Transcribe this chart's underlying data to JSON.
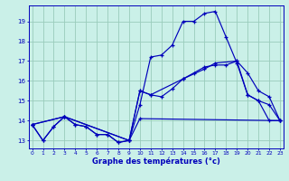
{
  "xlabel": "Graphe des températures (°c)",
  "bg_color": "#caf0e8",
  "line_color": "#0000bb",
  "grid_color": "#99ccbb",
  "xlim": [
    -0.3,
    23.3
  ],
  "ylim": [
    12.6,
    19.8
  ],
  "yticks": [
    13,
    14,
    15,
    16,
    17,
    18,
    19
  ],
  "xticks": [
    0,
    1,
    2,
    3,
    4,
    5,
    6,
    7,
    8,
    9,
    10,
    11,
    12,
    13,
    14,
    15,
    16,
    17,
    18,
    19,
    20,
    21,
    22,
    23
  ],
  "series": [
    {
      "x": [
        0,
        1,
        2,
        3,
        4,
        5,
        6,
        7,
        8,
        9,
        10,
        11,
        12,
        13,
        14,
        15,
        16,
        17,
        18,
        19,
        20,
        21,
        22,
        23
      ],
      "y": [
        13.8,
        13.0,
        13.7,
        14.2,
        13.8,
        13.7,
        13.3,
        13.3,
        12.9,
        13.0,
        14.8,
        17.2,
        17.3,
        17.8,
        19.0,
        19.0,
        19.4,
        19.5,
        18.2,
        16.9,
        15.3,
        15.0,
        14.0,
        14.0
      ]
    },
    {
      "x": [
        0,
        1,
        2,
        3,
        4,
        5,
        6,
        7,
        8,
        9,
        10,
        11,
        12,
        13,
        14,
        15,
        16,
        17,
        18,
        19,
        20,
        21,
        22,
        23
      ],
      "y": [
        13.8,
        13.0,
        13.7,
        14.2,
        13.8,
        13.7,
        13.3,
        13.3,
        12.9,
        13.0,
        15.5,
        15.3,
        15.2,
        15.6,
        16.1,
        16.4,
        16.7,
        16.8,
        16.8,
        17.0,
        16.4,
        15.5,
        15.2,
        14.0
      ]
    },
    {
      "x": [
        0,
        3,
        9,
        10,
        23
      ],
      "y": [
        13.8,
        14.2,
        13.0,
        14.1,
        14.0
      ]
    },
    {
      "x": [
        0,
        3,
        9,
        10,
        11,
        14,
        16,
        17,
        19,
        20,
        21,
        22,
        23
      ],
      "y": [
        13.8,
        14.2,
        13.0,
        15.5,
        15.3,
        16.1,
        16.6,
        16.9,
        17.0,
        15.3,
        15.0,
        14.8,
        14.0
      ]
    }
  ]
}
